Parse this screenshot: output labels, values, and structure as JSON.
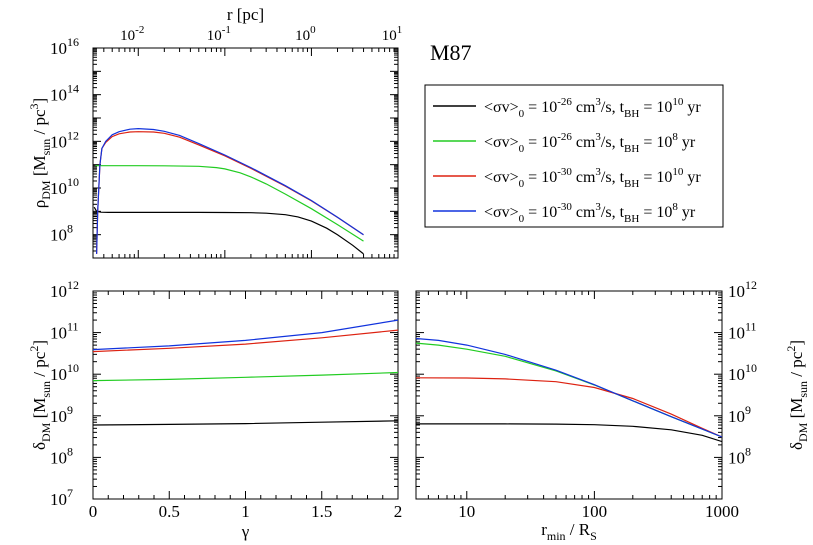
{
  "figure_title": "M87",
  "colors": {
    "black": "#000000",
    "green": "#22cc22",
    "red": "#dd2211",
    "blue": "#1133dd"
  },
  "legend": {
    "entries": [
      {
        "prefix": "<σv>",
        "sub0": "0",
        "eq1": " = 10",
        "exp_sv": "-26",
        "unit": " cm",
        "unit_exp": "3",
        "mid": "/s,  t",
        "sub_bh": "BH",
        "eq2": " = 10",
        "exp_t": "10",
        "end": " yr",
        "color": "black"
      },
      {
        "prefix": "<σv>",
        "sub0": "0",
        "eq1": " = 10",
        "exp_sv": "-26",
        "unit": " cm",
        "unit_exp": "3",
        "mid": "/s,  t",
        "sub_bh": "BH",
        "eq2": " = 10",
        "exp_t": "8",
        "end": " yr",
        "color": "green"
      },
      {
        "prefix": "<σv>",
        "sub0": "0",
        "eq1": " = 10",
        "exp_sv": "-30",
        "unit": " cm",
        "unit_exp": "3",
        "mid": "/s,  t",
        "sub_bh": "BH",
        "eq2": " = 10",
        "exp_t": "10",
        "end": " yr",
        "color": "red"
      },
      {
        "prefix": "<σv>",
        "sub0": "0",
        "eq1": " = 10",
        "exp_sv": "-30",
        "unit": " cm",
        "unit_exp": "3",
        "mid": "/s,  t",
        "sub_bh": "BH",
        "eq2": " = 10",
        "exp_t": "8",
        "end": " yr",
        "color": "blue"
      }
    ]
  },
  "chart_data": [
    {
      "id": "density_profile",
      "type": "line",
      "title": "",
      "xlabel": "r [pc]",
      "ylabel": {
        "sym": "ρ",
        "sub": "DM",
        "text": " [M",
        "sub2": "sun",
        "text2": " / pc",
        "sup": "3",
        "text3": "]"
      },
      "xscale": "log",
      "yscale": "log",
      "xlim": [
        0.003,
        10
      ],
      "ylim": [
        10000000.0,
        1e+16
      ],
      "x_ticks": [
        {
          "value": 0.01,
          "label": "10",
          "exp": "-2"
        },
        {
          "value": 0.1,
          "label": "10",
          "exp": "-1"
        },
        {
          "value": 1,
          "label": "10",
          "exp": "0"
        },
        {
          "value": 10,
          "label": "10",
          "exp": "1"
        }
      ],
      "y_ticks": [
        {
          "value": 100000000.0,
          "label": "10",
          "exp": "8"
        },
        {
          "value": 10000000000.0,
          "label": "10",
          "exp": "10"
        },
        {
          "value": 1000000000000.0,
          "label": "10",
          "exp": "12"
        },
        {
          "value": 100000000000000.0,
          "label": "10",
          "exp": "14"
        },
        {
          "value": 1e+16,
          "label": "10",
          "exp": "16"
        }
      ],
      "series": [
        {
          "name": "<σv>0 = 1e-26 cm3/s, tBH = 1e10 yr",
          "color": "black",
          "x": [
            0.0031,
            0.0033,
            0.0037,
            0.0045,
            0.006,
            0.01,
            0.02,
            0.05,
            0.1,
            0.2,
            0.3,
            0.5,
            0.7,
            1.0,
            1.5,
            2.0,
            3.0,
            4.0
          ],
          "y": [
            1500000000.0,
            1000000000.0,
            920000000.0,
            900000000.0,
            900000000.0,
            900000000.0,
            900000000.0,
            900000000.0,
            890000000.0,
            870000000.0,
            830000000.0,
            720000000.0,
            580000000.0,
            380000000.0,
            190000000.0,
            100000000.0,
            35000000.0,
            15000000.0
          ]
        },
        {
          "name": "<σv>0 = 1e-26 cm3/s, tBH = 1e8 yr",
          "color": "green",
          "x": [
            0.0032,
            0.0037,
            0.0045,
            0.006,
            0.01,
            0.02,
            0.05,
            0.08,
            0.1,
            0.15,
            0.2,
            0.3,
            0.5,
            1.0,
            2.0,
            4.0
          ],
          "y": [
            90000000000.0,
            90000000000.0,
            90000000000.0,
            90000000000.0,
            90000000000.0,
            89000000000.0,
            85000000000.0,
            75000000000.0,
            66000000000.0,
            45000000000.0,
            30000000000.0,
            15000000000.0,
            5500000000.0,
            1300000000.0,
            270000000.0,
            53000000.0
          ]
        },
        {
          "name": "<σv>0 = 1e-30 cm3/s, tBH = 1e10 yr",
          "color": "red",
          "x": [
            0.0033,
            0.0034,
            0.0036,
            0.0038,
            0.0042,
            0.005,
            0.006,
            0.008,
            0.01,
            0.015,
            0.02,
            0.03,
            0.05,
            0.1,
            0.2,
            0.5,
            1.0,
            2.0,
            4.0
          ],
          "y": [
            15000000.0,
            1000000000.0,
            100000000000.0,
            500000000000.0,
            900000000000.0,
            1600000000000.0,
            2100000000000.0,
            2500000000000.0,
            2600000000000.0,
            2500000000000.0,
            2200000000000.0,
            1500000000000.0,
            700000000000.0,
            240000000000.0,
            70000000000.0,
            12000000000.0,
            2800000000.0,
            550000000.0,
            100000000.0
          ]
        },
        {
          "name": "<σv>0 = 1e-30 cm3/s, tBH = 1e8 yr",
          "color": "blue",
          "x": [
            0.0033,
            0.0034,
            0.0036,
            0.0038,
            0.0042,
            0.005,
            0.006,
            0.008,
            0.01,
            0.015,
            0.02,
            0.03,
            0.05,
            0.1,
            0.2,
            0.5,
            1.0,
            2.0,
            4.0
          ],
          "y": [
            15000000.0,
            1000000000.0,
            100000000000.0,
            500000000000.0,
            1000000000000.0,
            1900000000000.0,
            2600000000000.0,
            3300000000000.0,
            3500000000000.0,
            3200000000000.0,
            2700000000000.0,
            1800000000000.0,
            800000000000.0,
            260000000000.0,
            75000000000.0,
            12500000000.0,
            2900000000.0,
            560000000.0,
            100000000.0
          ]
        }
      ]
    },
    {
      "id": "delta_vs_gamma",
      "type": "line",
      "title": "",
      "xlabel": "γ",
      "ylabel": {
        "sym": "δ",
        "sub": "DM",
        "text": " [M",
        "sub2": "sun",
        "text2": " / pc",
        "sup": "2",
        "text3": "]"
      },
      "xscale": "linear",
      "yscale": "log",
      "xlim": [
        0,
        2
      ],
      "ylim": [
        10000000.0,
        1000000000000.0
      ],
      "x_ticks": [
        {
          "value": 0,
          "label": "0"
        },
        {
          "value": 0.5,
          "label": "0.5"
        },
        {
          "value": 1,
          "label": "1"
        },
        {
          "value": 1.5,
          "label": "1.5"
        },
        {
          "value": 2,
          "label": "2"
        }
      ],
      "y_ticks": [
        {
          "value": 10000000.0,
          "label": "10",
          "exp": "7"
        },
        {
          "value": 100000000.0,
          "label": "10",
          "exp": "8"
        },
        {
          "value": 1000000000.0,
          "label": "10",
          "exp": "9"
        },
        {
          "value": 10000000000.0,
          "label": "10",
          "exp": "10"
        },
        {
          "value": 100000000000.0,
          "label": "10",
          "exp": "11"
        },
        {
          "value": 1000000000000.0,
          "label": "10",
          "exp": "12"
        }
      ],
      "series": [
        {
          "name": "black",
          "color": "black",
          "x": [
            0,
            0.5,
            1.0,
            1.5,
            2.0
          ],
          "y": [
            600000000.0,
            620000000.0,
            650000000.0,
            700000000.0,
            760000000.0
          ]
        },
        {
          "name": "green",
          "color": "green",
          "x": [
            0,
            0.5,
            1.0,
            1.5,
            2.0
          ],
          "y": [
            7000000000.0,
            7500000000.0,
            8400000000.0,
            9500000000.0,
            11000000000.0
          ]
        },
        {
          "name": "red",
          "color": "red",
          "x": [
            0,
            0.5,
            1.0,
            1.5,
            2.0
          ],
          "y": [
            35000000000.0,
            42000000000.0,
            53000000000.0,
            75000000000.0,
            115000000000.0
          ]
        },
        {
          "name": "blue",
          "color": "blue",
          "x": [
            0,
            0.5,
            1.0,
            1.5,
            2.0
          ],
          "y": [
            39000000000.0,
            48000000000.0,
            65000000000.0,
            100000000000.0,
            200000000000.0
          ]
        }
      ]
    },
    {
      "id": "delta_vs_rmin",
      "type": "line",
      "title": "",
      "xlabel": {
        "text": "r",
        "sub": "min",
        "text2": " / R",
        "sub2": "S"
      },
      "ylabel": {
        "sym": "δ",
        "sub": "DM",
        "text": " [M",
        "sub2": "sun",
        "text2": " / pc",
        "sup": "2",
        "text3": "]"
      },
      "xscale": "log",
      "yscale": "log",
      "xlim": [
        4,
        1000
      ],
      "ylim": [
        10000000.0,
        1000000000000.0
      ],
      "x_ticks": [
        {
          "value": 10,
          "label": "10"
        },
        {
          "value": 100,
          "label": "100"
        },
        {
          "value": 1000,
          "label": "1000"
        }
      ],
      "y_ticks": [
        {
          "value": 100000000.0,
          "label": "10",
          "exp": "8"
        },
        {
          "value": 1000000000.0,
          "label": "10",
          "exp": "9"
        },
        {
          "value": 10000000000.0,
          "label": "10",
          "exp": "10"
        },
        {
          "value": 100000000000.0,
          "label": "10",
          "exp": "11"
        },
        {
          "value": 1000000000000.0,
          "label": "10",
          "exp": "12"
        }
      ],
      "series": [
        {
          "name": "black",
          "color": "black",
          "x": [
            4,
            10,
            20,
            50,
            100,
            200,
            400,
            700,
            1000
          ],
          "y": [
            640000000.0,
            640000000.0,
            640000000.0,
            630000000.0,
            610000000.0,
            560000000.0,
            460000000.0,
            340000000.0,
            240000000.0
          ]
        },
        {
          "name": "green",
          "color": "green",
          "x": [
            4,
            6,
            10,
            20,
            50,
            100,
            200,
            400,
            700,
            1000
          ],
          "y": [
            56000000000.0,
            50000000000.0,
            40000000000.0,
            27000000000.0,
            12000000000.0,
            5500000000.0,
            2300000000.0,
            950000000.0,
            480000000.0,
            310000000.0
          ]
        },
        {
          "name": "red",
          "color": "red",
          "x": [
            4,
            10,
            20,
            50,
            100,
            200,
            400,
            700,
            1000
          ],
          "y": [
            8200000000.0,
            8100000000.0,
            7700000000.0,
            6600000000.0,
            4800000000.0,
            2600000000.0,
            1100000000.0,
            500000000.0,
            310000000.0
          ]
        },
        {
          "name": "blue",
          "color": "blue",
          "x": [
            4,
            6,
            10,
            20,
            50,
            100,
            200,
            400,
            700,
            1000
          ],
          "y": [
            72000000000.0,
            65000000000.0,
            50000000000.0,
            30000000000.0,
            12500000000.0,
            5600000000.0,
            2300000000.0,
            950000000.0,
            480000000.0,
            310000000.0
          ]
        }
      ]
    }
  ]
}
